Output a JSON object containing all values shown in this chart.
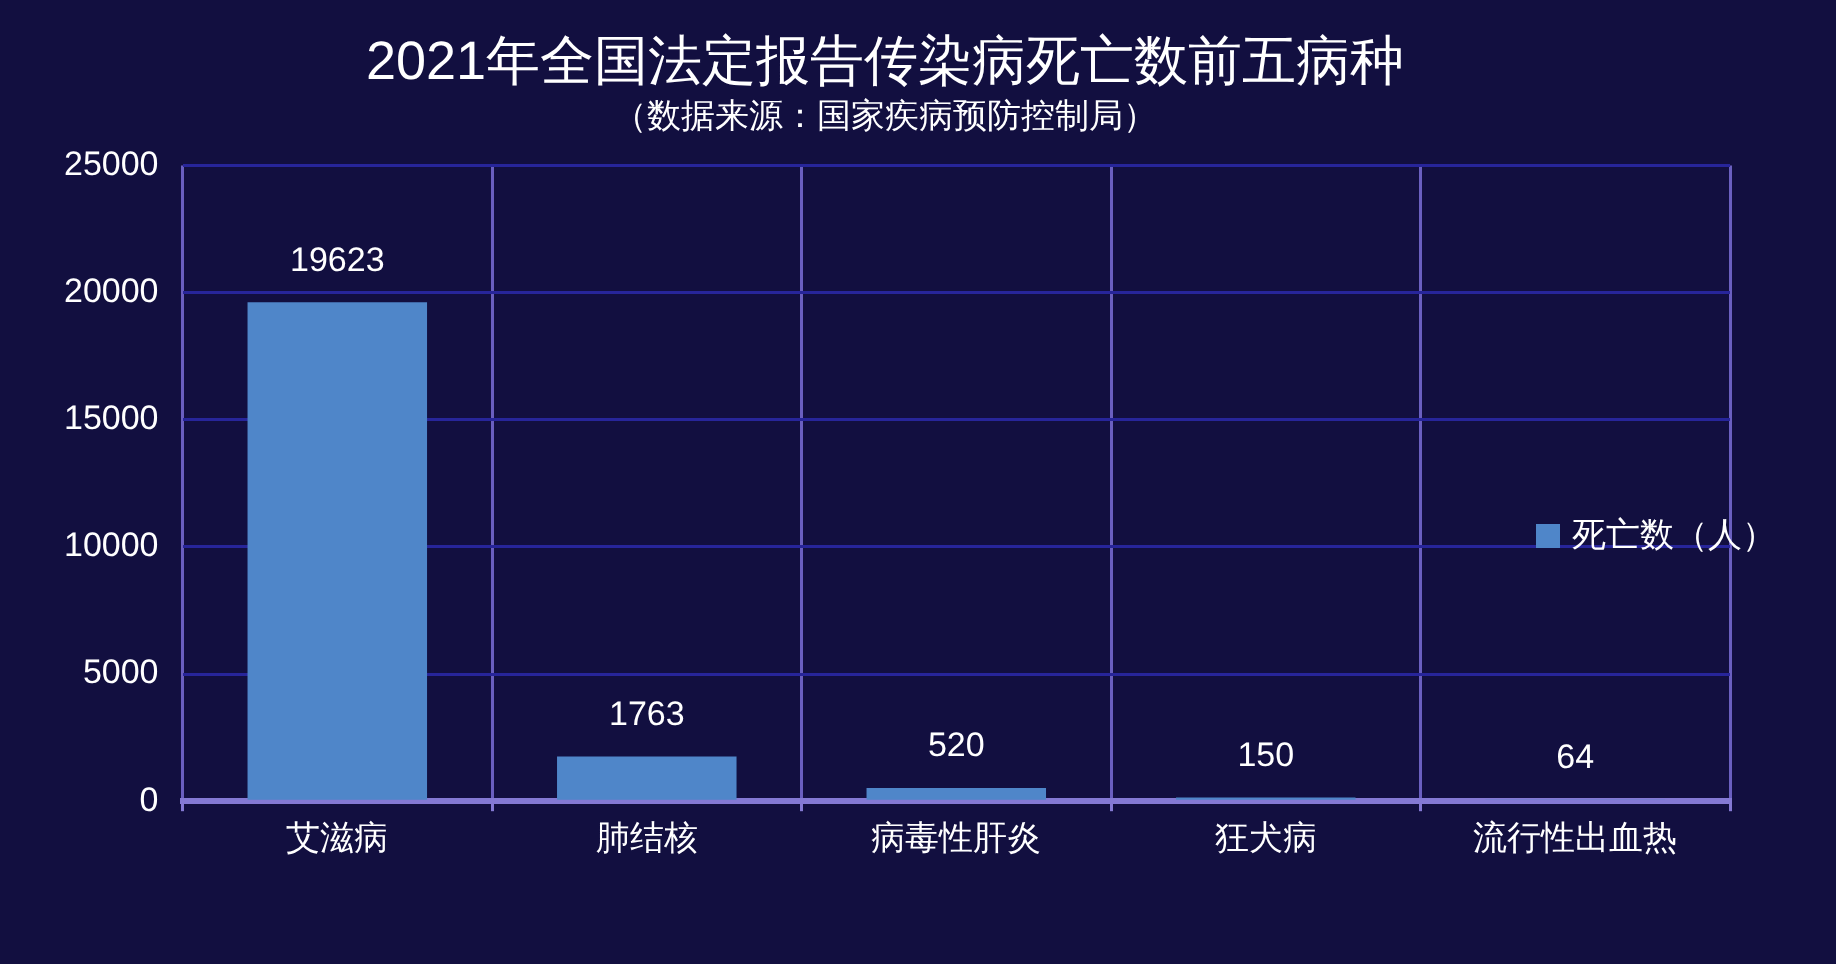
{
  "chart_data": {
    "type": "bar",
    "title": "2021年全国法定报告传染病死亡数前五病种",
    "subtitle": "（数据来源：国家疾病预防控制局）",
    "categories": [
      "艾滋病",
      "肺结核",
      "病毒性肝炎",
      "狂犬病",
      "流行性出血热"
    ],
    "series": [
      {
        "name": "死亡数（人）",
        "color": "#4f86c9",
        "values": [
          19623,
          1763,
          520,
          150,
          64
        ]
      }
    ],
    "ylim": [
      0,
      25000
    ],
    "yticks": [
      0,
      5000,
      10000,
      15000,
      20000,
      25000
    ],
    "grid": true,
    "legend": "right",
    "data_labels": true
  }
}
